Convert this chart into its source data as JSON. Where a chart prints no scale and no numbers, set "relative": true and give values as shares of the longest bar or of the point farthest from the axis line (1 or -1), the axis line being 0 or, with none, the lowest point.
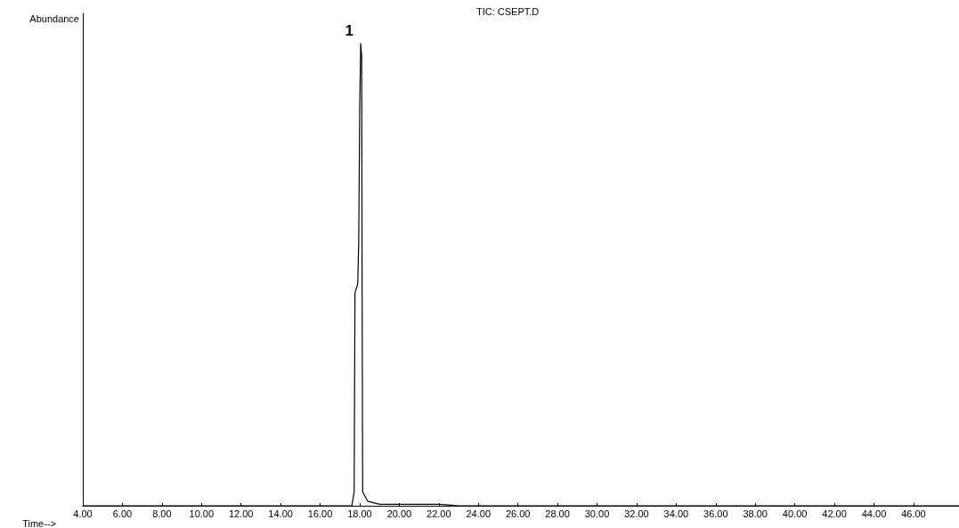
{
  "chart_data": {
    "type": "line",
    "title": "TIC: CSEPT.D",
    "xlabel": "Time-->",
    "ylabel": "Abundance",
    "relative": true,
    "color": "#000000",
    "grid": false,
    "marker": "none",
    "line_style": "solid",
    "x": [
      4,
      17.6,
      17.72,
      17.76,
      17.9,
      17.95,
      18.0,
      18.05,
      18.1,
      18.12,
      18.15,
      18.4,
      19.0,
      22,
      23,
      48.3
    ],
    "values": [
      0,
      0,
      0.03,
      0.46,
      0.48,
      0.57,
      0.86,
      1.0,
      0.97,
      0.5,
      0.03,
      0.01,
      0.003,
      0.003,
      0,
      0
    ],
    "xlim": [
      4,
      48.3
    ],
    "xticks": [
      {
        "value": 4,
        "label": "4.00"
      },
      {
        "value": 6,
        "label": "6.00"
      },
      {
        "value": 8,
        "label": "8.00"
      },
      {
        "value": 10,
        "label": "10.00"
      },
      {
        "value": 12,
        "label": "12.00"
      },
      {
        "value": 14,
        "label": "14.00"
      },
      {
        "value": 16,
        "label": "16.00"
      },
      {
        "value": 18,
        "label": "18.00"
      },
      {
        "value": 20,
        "label": "20.00"
      },
      {
        "value": 22,
        "label": "22.00"
      },
      {
        "value": 24,
        "label": "24.00"
      },
      {
        "value": 26,
        "label": "26.00"
      },
      {
        "value": 28,
        "label": "28.00"
      },
      {
        "value": 30,
        "label": "30.00"
      },
      {
        "value": 32,
        "label": "32.00"
      },
      {
        "value": 34,
        "label": "34.00"
      },
      {
        "value": 36,
        "label": "36.00"
      },
      {
        "value": 38,
        "label": "38.00"
      },
      {
        "value": 40,
        "label": "40.00"
      },
      {
        "value": 42,
        "label": "42.00"
      },
      {
        "value": 44,
        "label": "44.00"
      },
      {
        "value": 46,
        "label": "46.00"
      }
    ],
    "annotations": [
      {
        "text": "1",
        "x": 18.05,
        "y": 1.0
      }
    ]
  }
}
